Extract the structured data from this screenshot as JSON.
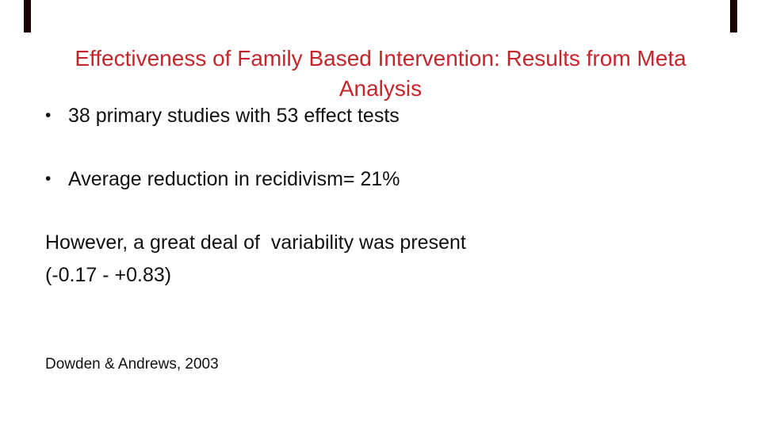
{
  "slide": {
    "colors": {
      "background": "#ffffff",
      "title_red": "#c4262b",
      "body_text": "#111111",
      "edge_bar": "#1b0303"
    },
    "title_lines": [
      "Effectiveness of Family Based Intervention: Results from Meta",
      "Analysis"
    ],
    "bullet_glyph": "•",
    "bullets": [
      "38 primary studies with 53 effect tests",
      "Average reduction in recidivism= 21%"
    ],
    "note_lines": [
      "However, a great deal of  variability was present",
      "(-0.17 - +0.83)"
    ],
    "citation": "Dowden & Andrews, 2003"
  }
}
